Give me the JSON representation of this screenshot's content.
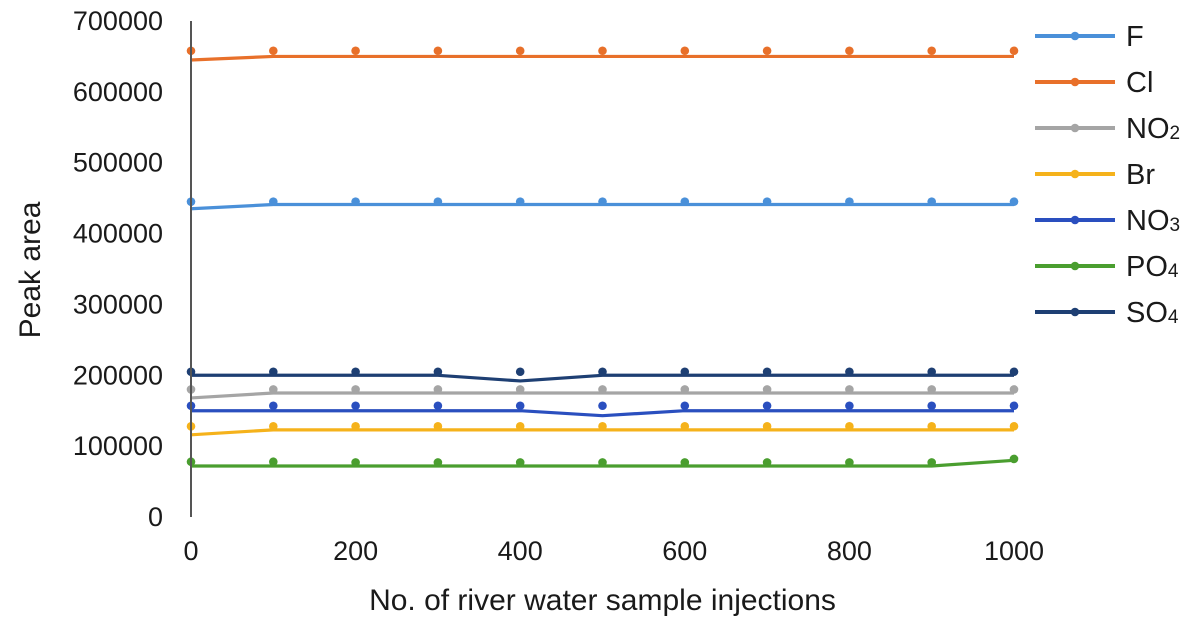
{
  "chart_data": {
    "type": "line",
    "title": "",
    "xlabel": "No. of river water sample injections",
    "ylabel": "Peak area",
    "xlim": [
      0,
      1000
    ],
    "ylim": [
      0,
      700000
    ],
    "x_ticks": [
      0,
      200,
      400,
      600,
      800,
      1000
    ],
    "y_ticks": [
      0,
      100000,
      200000,
      300000,
      400000,
      500000,
      600000,
      700000
    ],
    "grid": false,
    "legend_position": "right",
    "x": [
      0,
      100,
      200,
      300,
      400,
      500,
      600,
      700,
      800,
      900,
      1000
    ],
    "series": [
      {
        "name": "F",
        "label_main": "F",
        "label_sub": "",
        "color": "#4a90d9",
        "values": [
          445000,
          445000,
          445000,
          445000,
          445000,
          445000,
          445000,
          445000,
          445000,
          445000,
          445000
        ],
        "line": [
          435000,
          441000,
          441000,
          441000,
          441000,
          441000,
          441000,
          441000,
          441000,
          441000,
          441000
        ]
      },
      {
        "name": "Cl",
        "label_main": "Cl",
        "label_sub": "",
        "color": "#e8702a",
        "values": [
          658000,
          658000,
          658000,
          658000,
          658000,
          658000,
          658000,
          658000,
          658000,
          658000,
          658000
        ],
        "line": [
          645000,
          650000,
          650000,
          650000,
          650000,
          650000,
          650000,
          650000,
          650000,
          650000,
          650000
        ]
      },
      {
        "name": "NO2",
        "label_main": "NO",
        "label_sub": "2",
        "color": "#a5a5a5",
        "values": [
          180000,
          180000,
          180000,
          180000,
          180000,
          180000,
          180000,
          180000,
          180000,
          180000,
          180000
        ],
        "line": [
          168000,
          175000,
          175000,
          175000,
          175000,
          175000,
          175000,
          175000,
          175000,
          175000,
          175000
        ]
      },
      {
        "name": "Br",
        "label_main": "Br",
        "label_sub": "",
        "color": "#f5b21b",
        "values": [
          128000,
          128000,
          128000,
          128000,
          128000,
          128000,
          128000,
          128000,
          128000,
          128000,
          128000
        ],
        "line": [
          116000,
          123000,
          123000,
          123000,
          123000,
          123000,
          123000,
          123000,
          123000,
          123000,
          123000
        ]
      },
      {
        "name": "NO3",
        "label_main": "NO",
        "label_sub": "3",
        "color": "#2a4fbf",
        "values": [
          157000,
          157000,
          157000,
          157000,
          157000,
          157000,
          157000,
          157000,
          157000,
          157000,
          157000
        ],
        "line": [
          150000,
          150000,
          150000,
          150000,
          150000,
          143000,
          150000,
          150000,
          150000,
          150000,
          150000
        ]
      },
      {
        "name": "PO4",
        "label_main": "PO",
        "label_sub": "4",
        "color": "#4a9e2f",
        "values": [
          78000,
          78000,
          77000,
          77000,
          77000,
          77000,
          77000,
          77000,
          77000,
          77000,
          82000
        ],
        "line": [
          72000,
          72000,
          72000,
          72000,
          72000,
          72000,
          72000,
          72000,
          72000,
          72000,
          80000
        ]
      },
      {
        "name": "SO4",
        "label_main": "SO",
        "label_sub": "4",
        "color": "#1e3f73",
        "values": [
          205000,
          205000,
          205000,
          205000,
          205000,
          205000,
          205000,
          205000,
          205000,
          205000,
          205000
        ],
        "line": [
          200000,
          200000,
          200000,
          200000,
          192000,
          200000,
          200000,
          200000,
          200000,
          200000,
          200000
        ]
      }
    ]
  }
}
